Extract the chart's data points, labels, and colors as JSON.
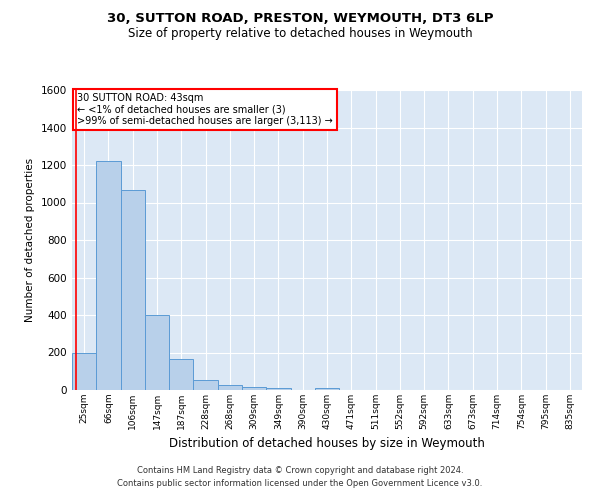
{
  "title": "30, SUTTON ROAD, PRESTON, WEYMOUTH, DT3 6LP",
  "subtitle": "Size of property relative to detached houses in Weymouth",
  "xlabel": "Distribution of detached houses by size in Weymouth",
  "ylabel": "Number of detached properties",
  "bar_labels": [
    "25sqm",
    "66sqm",
    "106sqm",
    "147sqm",
    "187sqm",
    "228sqm",
    "268sqm",
    "309sqm",
    "349sqm",
    "390sqm",
    "430sqm",
    "471sqm",
    "511sqm",
    "552sqm",
    "592sqm",
    "633sqm",
    "673sqm",
    "714sqm",
    "754sqm",
    "795sqm",
    "835sqm"
  ],
  "bar_values": [
    200,
    1220,
    1065,
    400,
    165,
    52,
    25,
    15,
    12,
    0,
    12,
    0,
    0,
    0,
    0,
    0,
    0,
    0,
    0,
    0,
    0
  ],
  "bar_color": "#b8d0ea",
  "bar_edge_color": "#5b9bd5",
  "ylim": [
    0,
    1600
  ],
  "yticks": [
    0,
    200,
    400,
    600,
    800,
    1000,
    1200,
    1400,
    1600
  ],
  "bg_color": "#dce8f5",
  "grid_color": "#ffffff",
  "red_line_index": 0.18,
  "annot_text_line1": "30 SUTTON ROAD: 43sqm",
  "annot_text_line2": "← <1% of detached houses are smaller (3)",
  "annot_text_line3": ">99% of semi-detached houses are larger (3,113) →",
  "footer_line1": "Contains HM Land Registry data © Crown copyright and database right 2024.",
  "footer_line2": "Contains public sector information licensed under the Open Government Licence v3.0."
}
